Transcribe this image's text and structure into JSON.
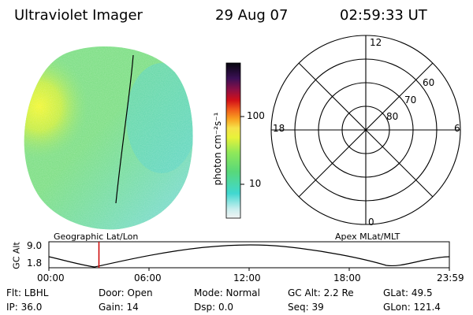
{
  "header": {
    "title": "Ultraviolet Imager",
    "date": "29 Aug 07",
    "time": "02:59:33 UT"
  },
  "colorbar": {
    "unit_label": "photon cm⁻²s⁻¹",
    "ticks": [
      "100",
      "10"
    ],
    "scale": "log",
    "range": [
      3,
      500
    ]
  },
  "polar_plot": {
    "mlt_labels": {
      "top": "12",
      "left": "18",
      "right": "6",
      "bottom": "0"
    },
    "lat_labels": [
      "60",
      "70",
      "80"
    ]
  },
  "orbit_panel": {
    "axis_label": "GC Alt",
    "yticks": [
      "9.0",
      "1.8"
    ],
    "left_title": "Geographic Lat/Lon",
    "right_title": "Apex MLat/MLT",
    "xticks": [
      "00:00",
      "06:00",
      "12:00",
      "18:00",
      "23:59"
    ],
    "current_time_fraction": 0.125,
    "marker_color": "#cc0000"
  },
  "status": {
    "row1": {
      "flt": "Flt: LBHL",
      "door": "Door: Open",
      "mode": "Mode: Normal",
      "gc_alt": "GC Alt: 2.2 Re",
      "glat": "GLat:  49.5"
    },
    "row2": {
      "ip": "IP: 36.0",
      "gain": "Gain: 14",
      "dsp": "Dsp:      0.0",
      "seq": "Seq: 39",
      "glon": "GLon: 121.4"
    }
  },
  "colors": {
    "disk_main": "#7fe08a",
    "disk_bright": "#e8f53a",
    "disk_dim": "#5fd8d0",
    "outline": "#000000"
  }
}
